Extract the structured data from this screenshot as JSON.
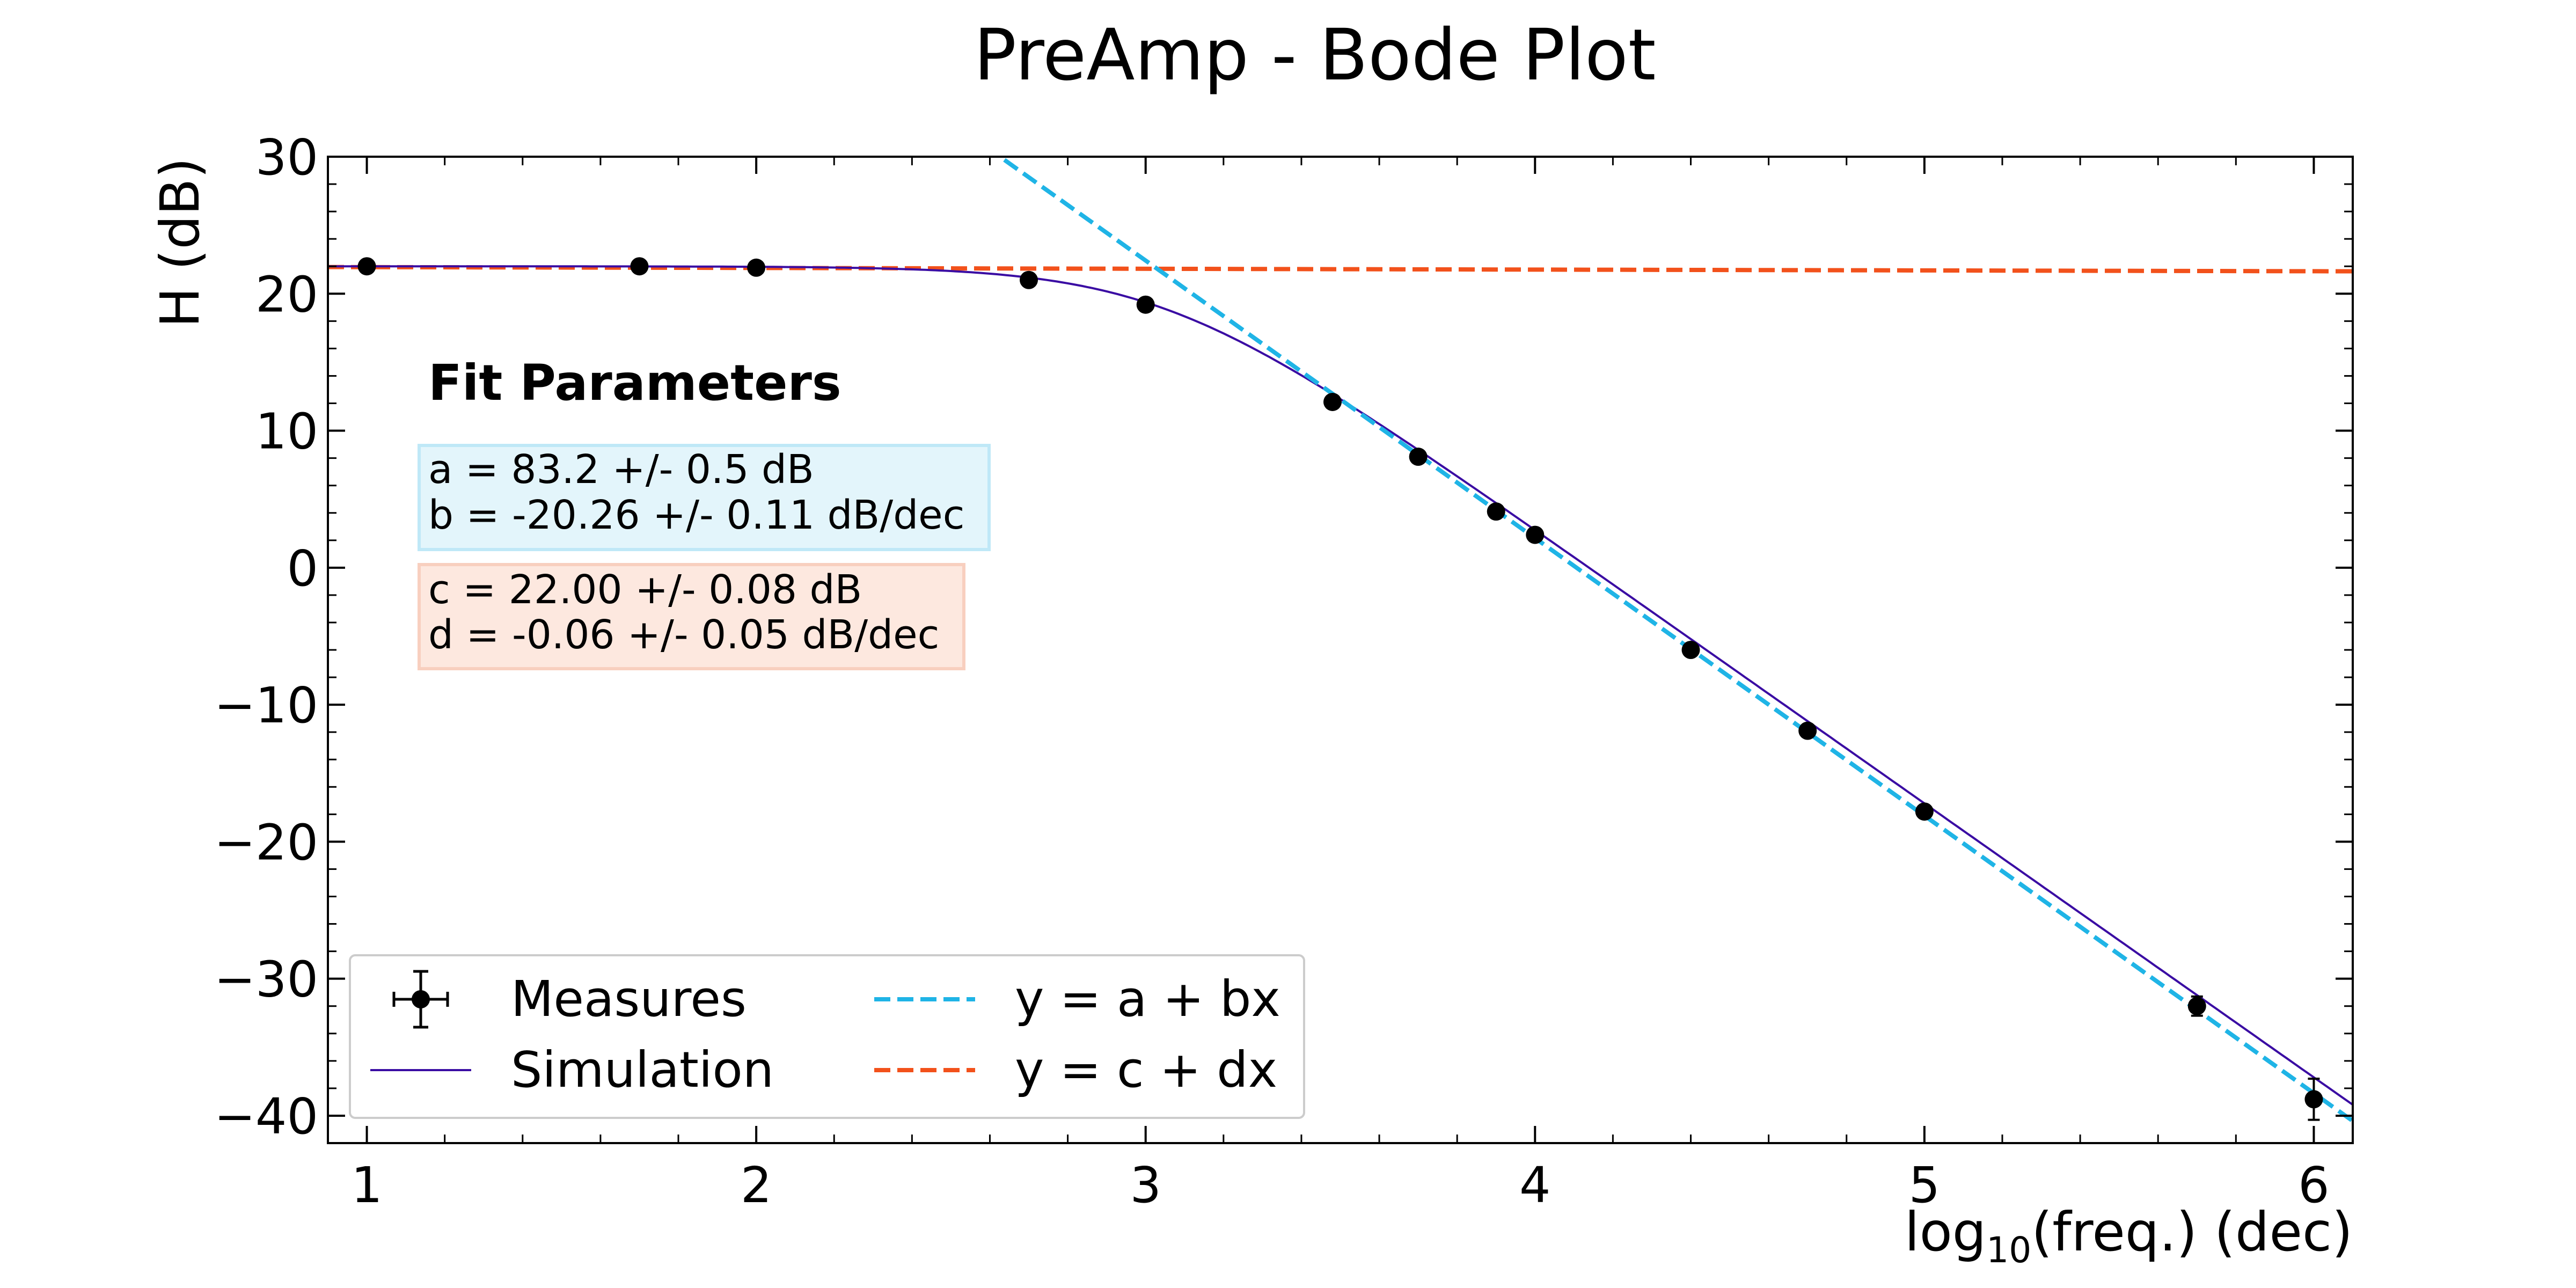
{
  "chart_data": {
    "type": "scatter",
    "title": "PreAmp - Bode Plot",
    "xlabel": {
      "prefix": "log",
      "subscript": "10",
      "suffix": "(freq.) (dec)"
    },
    "ylabel": "H (dB)",
    "xlim": [
      0.9,
      6.1
    ],
    "ylim": [
      -42,
      30
    ],
    "xticks": [
      1,
      2,
      3,
      4,
      5,
      6
    ],
    "yticks": [
      30,
      20,
      10,
      0,
      -10,
      -20,
      -30,
      -40
    ],
    "ytick_labels": [
      "30",
      "20",
      "10",
      "0",
      "−10",
      "−20",
      "−30",
      "−40"
    ],
    "grid": false,
    "legend_position": "lower-left",
    "series": [
      {
        "name": "Measures",
        "kind": "errorbar",
        "color": "#000000",
        "x": [
          1.0,
          1.7,
          2.0,
          2.7,
          3.0,
          3.48,
          3.7,
          3.9,
          4.0,
          4.4,
          4.7,
          5.0,
          5.7,
          6.0
        ],
        "y": [
          22.0,
          22.0,
          21.9,
          21.0,
          19.2,
          12.1,
          8.1,
          4.1,
          2.4,
          -6.0,
          -11.9,
          -17.8,
          -32.0,
          -38.8
        ],
        "yerr": [
          0.3,
          0.3,
          0.3,
          0.3,
          0.3,
          0.3,
          0.3,
          0.3,
          0.3,
          0.3,
          0.3,
          0.3,
          0.7,
          1.5
        ]
      },
      {
        "name": "Simulation",
        "kind": "line",
        "color": "#3a0ca3",
        "model": {
          "low_freq_gain_db": 22.0,
          "corner_log_freq": 3.04,
          "slope_db_per_dec": -20
        }
      },
      {
        "name": "y = a + bx",
        "kind": "dashed-line",
        "color": "#1fb4e6",
        "a": 83.2,
        "b": -20.26
      },
      {
        "name": "y = c + dx",
        "kind": "dashed-line",
        "color": "#f2511b",
        "c": 22.0,
        "d": -0.06
      }
    ],
    "annotations": {
      "fit_heading": "Fit Parameters",
      "fit_ab": {
        "lines": [
          "a = 83.2 +/- 0.5 dB",
          "b = -20.26 +/- 0.11 dB/dec"
        ],
        "fill": "#e3f5fb",
        "stroke": "#bfe8f7"
      },
      "fit_cd": {
        "lines": [
          "c = 22.00 +/- 0.08 dB",
          "d = -0.06 +/- 0.05 dB/dec"
        ],
        "fill": "#fde8df",
        "stroke": "#f8cfbf"
      }
    }
  }
}
